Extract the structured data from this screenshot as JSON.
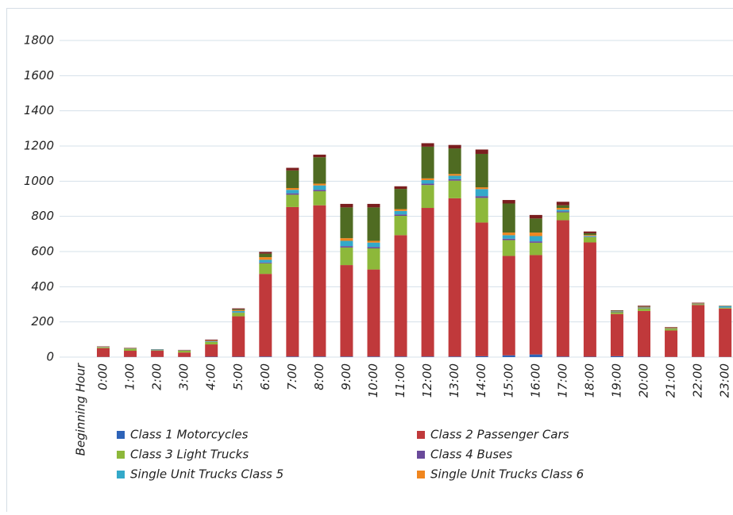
{
  "chart_data": {
    "type": "stacked_bar",
    "x_label": "Beginning Hour",
    "categories": [
      "0:00",
      "1:00",
      "2:00",
      "3:00",
      "4:00",
      "5:00",
      "6:00",
      "7:00",
      "8:00",
      "9:00",
      "10:00",
      "11:00",
      "12:00",
      "13:00",
      "14:00",
      "15:00",
      "16:00",
      "17:00",
      "18:00",
      "19:00",
      "20:00",
      "21:00",
      "22:00",
      "23:00"
    ],
    "ylim": [
      0,
      1800
    ],
    "yticks": [
      0,
      200,
      400,
      600,
      800,
      1000,
      1200,
      1400,
      1600,
      1800
    ],
    "grid": true,
    "series": [
      {
        "name": "Class 1 Motorcycles",
        "color": "#2e63b8",
        "values": [
          1,
          1,
          1,
          1,
          2,
          2,
          3,
          3,
          3,
          3,
          3,
          3,
          3,
          3,
          5,
          10,
          15,
          3,
          2,
          5,
          2,
          1,
          1,
          1
        ]
      },
      {
        "name": "Class 2  Passenger Cars",
        "color": "#c0393b",
        "values": [
          50,
          35,
          35,
          25,
          70,
          230,
          470,
          850,
          860,
          520,
          495,
          690,
          845,
          900,
          760,
          565,
          565,
          775,
          650,
          240,
          260,
          150,
          295,
          275
        ]
      },
      {
        "name": "Class 3 Light Trucks",
        "color": "#8db83a",
        "values": [
          5,
          12,
          3,
          10,
          15,
          20,
          60,
          70,
          80,
          100,
          120,
          110,
          130,
          100,
          140,
          90,
          70,
          45,
          30,
          10,
          15,
          10,
          5,
          5
        ]
      },
      {
        "name": "Class 4 Buses",
        "color": "#6a4a9a",
        "values": [
          1,
          1,
          1,
          1,
          1,
          2,
          5,
          8,
          8,
          8,
          8,
          8,
          8,
          8,
          10,
          8,
          8,
          5,
          2,
          2,
          2,
          1,
          1,
          1
        ]
      },
      {
        "name": "Single Unit Trucks Class 5",
        "color": "#33a9c9",
        "values": [
          1,
          1,
          3,
          1,
          3,
          8,
          15,
          20,
          25,
          30,
          25,
          20,
          20,
          20,
          40,
          20,
          30,
          10,
          5,
          3,
          3,
          1,
          1,
          8
        ]
      },
      {
        "name": "Single Unit Trucks Class 6",
        "color": "#f0861f",
        "values": [
          1,
          1,
          1,
          1,
          3,
          5,
          15,
          10,
          10,
          15,
          10,
          10,
          10,
          10,
          10,
          15,
          20,
          10,
          5,
          2,
          3,
          2,
          1,
          1
        ]
      },
      {
        "color": "#4f6b22",
        "values": [
          0,
          0,
          0,
          0,
          0,
          5,
          20,
          100,
          150,
          175,
          190,
          115,
          180,
          145,
          190,
          165,
          80,
          15,
          10,
          2,
          2,
          2,
          2,
          1
        ]
      },
      {
        "color": "#7a1e1e",
        "values": [
          2,
          2,
          1,
          2,
          5,
          5,
          10,
          15,
          15,
          20,
          20,
          15,
          20,
          20,
          25,
          20,
          20,
          20,
          10,
          2,
          5,
          3,
          3,
          1
        ]
      }
    ]
  }
}
